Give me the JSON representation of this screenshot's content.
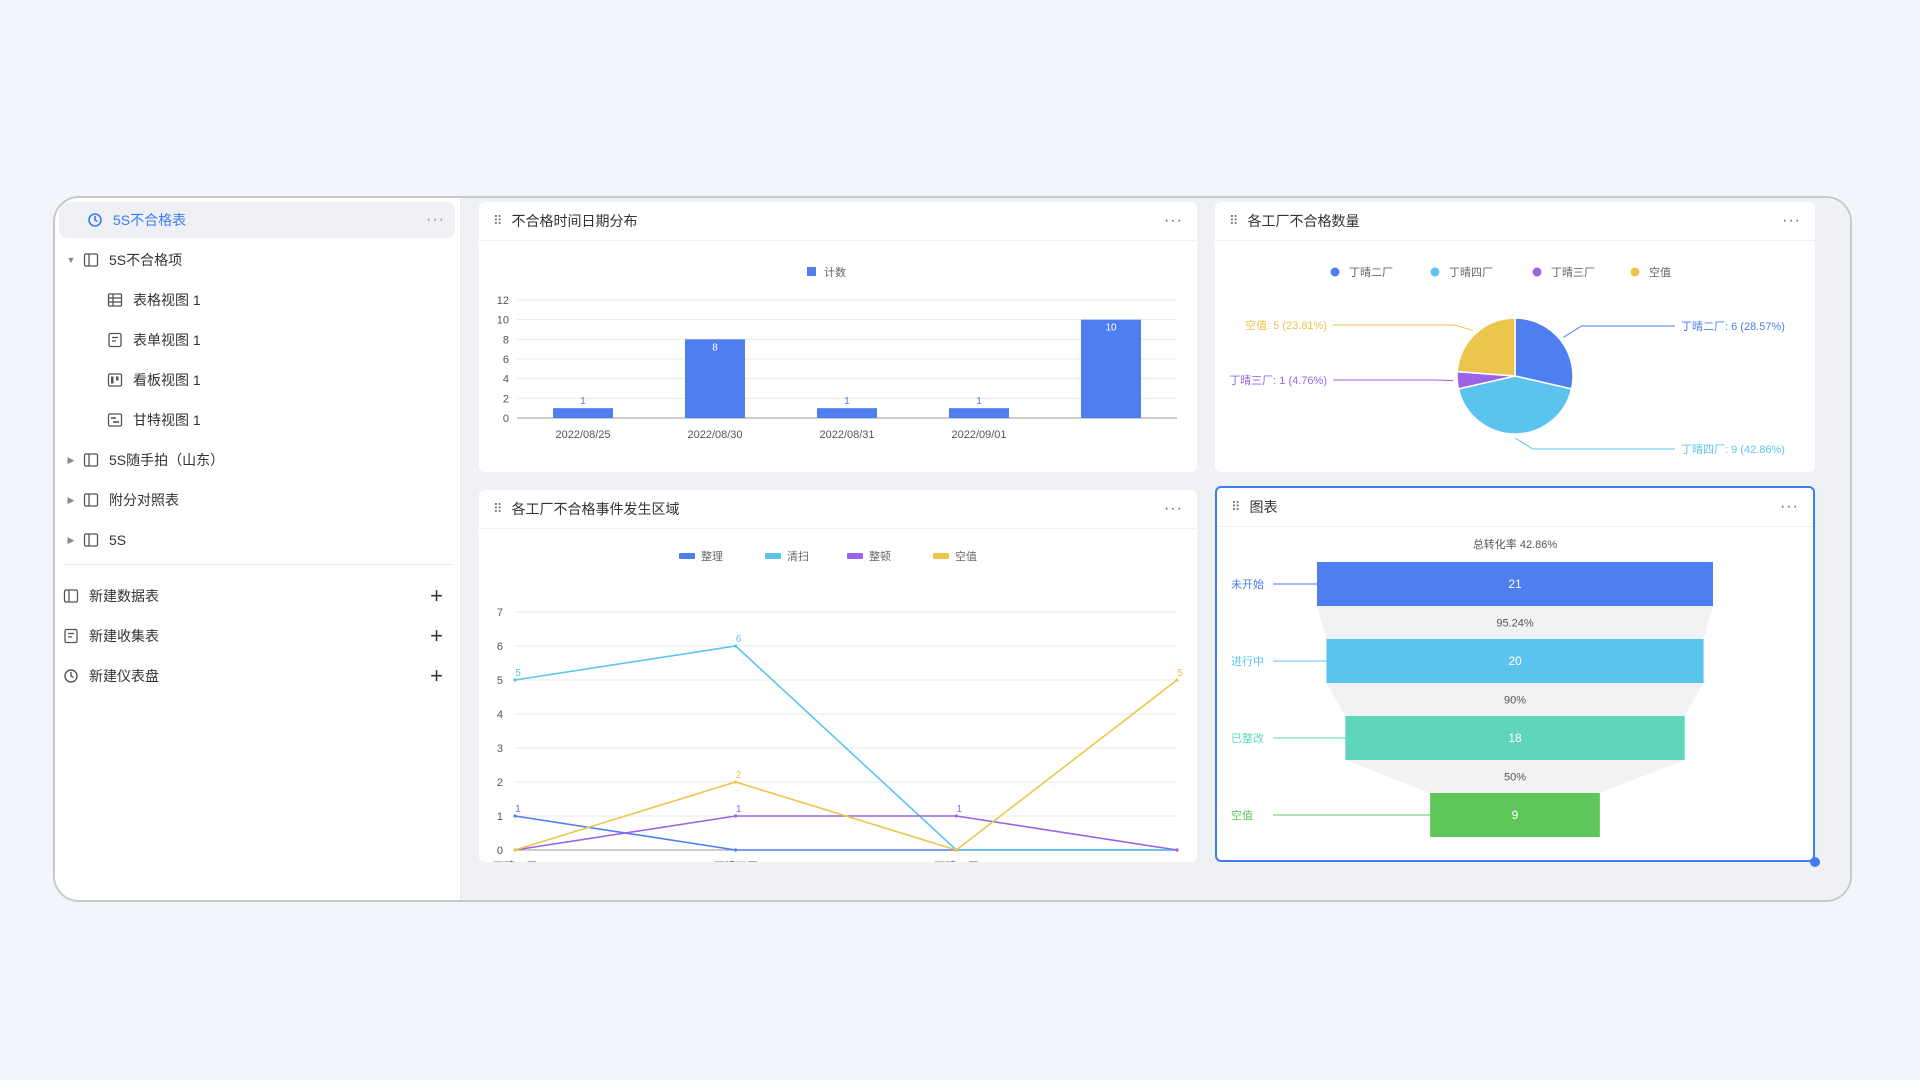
{
  "sidebar": {
    "header": {
      "label": "5S不合格表",
      "more": "···"
    },
    "items": [
      {
        "label": "5S不合格项",
        "expanded": true
      },
      {
        "label": "表格视图 1"
      },
      {
        "label": "表单视图 1"
      },
      {
        "label": "看板视图 1"
      },
      {
        "label": "甘特视图 1"
      },
      {
        "label": "5S随手拍（山东）"
      },
      {
        "label": "附分对照表"
      },
      {
        "label": "5S"
      }
    ],
    "actions": [
      {
        "label": "新建数据表",
        "plus": "+"
      },
      {
        "label": "新建收集表",
        "plus": "+"
      },
      {
        "label": "新建仪表盘",
        "plus": "+"
      }
    ]
  },
  "cards": {
    "bar": {
      "title": "不合格时间日期分布",
      "more": "···"
    },
    "pie": {
      "title": "各工厂不合格数量",
      "more": "···"
    },
    "line": {
      "title": "各工厂不合格事件发生区域",
      "more": "···"
    },
    "funnel": {
      "title": "图表",
      "more": "···"
    }
  },
  "chart_data": [
    {
      "type": "bar",
      "legend": [
        "计数"
      ],
      "categories": [
        "2022/08/25",
        "2022/08/30",
        "2022/08/31",
        "2022/09/01",
        ""
      ],
      "values": [
        1,
        8,
        1,
        1,
        10
      ],
      "yticks": [
        0,
        2,
        4,
        6,
        8,
        10,
        12
      ],
      "ylim": [
        0,
        12
      ],
      "color": "#4e7ef0"
    },
    {
      "type": "pie",
      "legend": [
        "丁晴二厂",
        "丁晴四厂",
        "丁晴三厂",
        "空值"
      ],
      "slices": [
        {
          "name": "丁晴二厂",
          "value": 6,
          "label": "丁晴二厂: 6 (28.57%)",
          "color": "#4e7ef0"
        },
        {
          "name": "丁晴四厂",
          "value": 9,
          "label": "丁晴四厂: 9 (42.86%)",
          "color": "#5bc4ee"
        },
        {
          "name": "丁晴三厂",
          "value": 1,
          "label": "丁晴三厂: 1 (4.76%)",
          "color": "#9a63e8"
        },
        {
          "name": "空值",
          "value": 5,
          "label": "空值: 5 (23.81%)",
          "color": "#ecc54d"
        }
      ]
    },
    {
      "type": "line",
      "legend": [
        "整理",
        "清扫",
        "整顿",
        "空值"
      ],
      "categories": [
        "丁晴二厂",
        "丁晴四厂",
        "丁晴三厂",
        ""
      ],
      "yticks": [
        0,
        1,
        2,
        3,
        4,
        5,
        6,
        7
      ],
      "ylim": [
        0,
        7
      ],
      "series": [
        {
          "name": "整理",
          "values": [
            1,
            0,
            0,
            0
          ],
          "color": "#4e7ef0"
        },
        {
          "name": "清扫",
          "values": [
            5,
            6,
            0,
            0
          ],
          "color": "#5bc4ee"
        },
        {
          "name": "整顿",
          "values": [
            0,
            1,
            1,
            0
          ],
          "color": "#9a63e8"
        },
        {
          "name": "空值",
          "values": [
            0,
            2,
            0,
            5
          ],
          "color": "#ecc54d"
        }
      ]
    },
    {
      "type": "funnel",
      "title": "总转化率 42.86%",
      "stages": [
        {
          "name": "未开始",
          "value": 21,
          "color": "#4e7ef0"
        },
        {
          "name": "进行中",
          "value": 20,
          "color": "#5bc4ee"
        },
        {
          "name": "已整改",
          "value": 18,
          "color": "#5fd6bc"
        },
        {
          "name": "空值",
          "value": 9,
          "color": "#5fc65a"
        }
      ],
      "conversions": [
        "95.24%",
        "90%",
        "50%"
      ]
    }
  ]
}
